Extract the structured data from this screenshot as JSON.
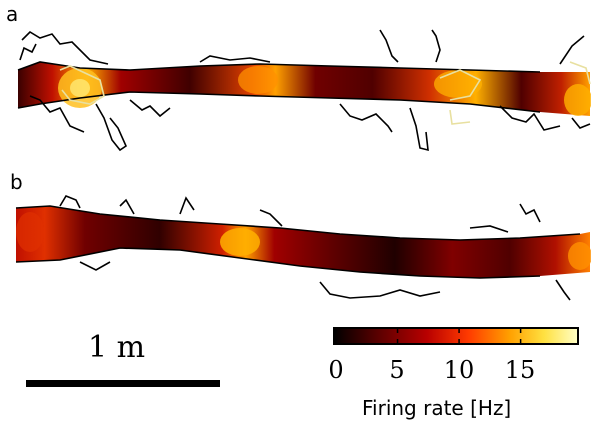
{
  "panels": {
    "a": {
      "letter": "a"
    },
    "b": {
      "letter": "b"
    }
  },
  "scale_bar": {
    "label": "1 m"
  },
  "colorbar": {
    "title": "Firing rate [Hz]",
    "ticks": [
      "0",
      "5",
      "10",
      "15"
    ],
    "tick_values": [
      0,
      5,
      10,
      15
    ],
    "max_value": 19.5,
    "colors": [
      "#000000",
      "#5a0000",
      "#b80000",
      "#ff3a00",
      "#ffa000",
      "#ffe040",
      "#ffffc8"
    ]
  }
}
